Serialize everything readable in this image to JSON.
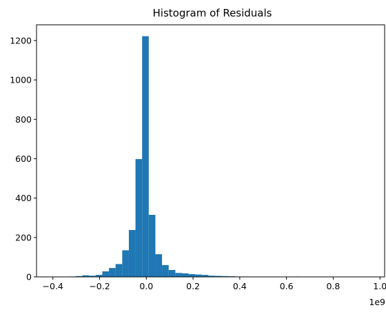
{
  "chart_data": {
    "type": "bar",
    "subtype": "histogram",
    "title": "Histogram of Residuals",
    "xlabel": "",
    "ylabel": "",
    "x_offset_label": "1e9",
    "x_scale": 1000000000,
    "xlim": [
      -0.47,
      1.02
    ],
    "ylim": [
      0,
      1280
    ],
    "x_ticks": [
      -0.4,
      -0.2,
      0.0,
      0.2,
      0.4,
      0.6,
      0.8,
      1.0
    ],
    "x_tick_labels": [
      "−0.4",
      "−0.2",
      "0.0",
      "0.2",
      "0.4",
      "0.6",
      "0.8",
      "1.0"
    ],
    "y_ticks": [
      0,
      200,
      400,
      600,
      800,
      1000,
      1200
    ],
    "y_tick_labels": [
      "0",
      "200",
      "400",
      "600",
      "800",
      "1000",
      "1200"
    ],
    "bar_color": "#1f77b4",
    "grid": false,
    "bin_edges": [
      -0.444,
      -0.4156,
      -0.3872,
      -0.3588,
      -0.3304,
      -0.302,
      -0.2736,
      -0.2452,
      -0.2168,
      -0.1884,
      -0.16,
      -0.1316,
      -0.1032,
      -0.0748,
      -0.0464,
      -0.018,
      0.0104,
      0.0388,
      0.0672,
      0.0956,
      0.124,
      0.1524,
      0.1808,
      0.2092,
      0.2376,
      0.266,
      0.2944,
      0.3228,
      0.3512,
      0.3796,
      0.408,
      0.4364,
      0.4648,
      0.4932,
      0.5216,
      0.55,
      0.5784,
      0.6068,
      0.6352,
      0.6636,
      0.692,
      0.7204,
      0.7488,
      0.7772,
      0.8056,
      0.834,
      0.8624,
      0.8908,
      0.9192,
      0.9476,
      0.976
    ],
    "counts": [
      1,
      0,
      0,
      1,
      2,
      4,
      8,
      6,
      10,
      28,
      45,
      65,
      135,
      238,
      598,
      1222,
      315,
      115,
      60,
      35,
      20,
      18,
      14,
      12,
      10,
      6,
      5,
      4,
      3,
      2,
      2,
      1,
      1,
      0,
      1,
      1,
      0,
      1,
      2,
      1,
      0,
      0,
      0,
      0,
      0,
      0,
      0,
      0,
      0,
      1
    ]
  }
}
